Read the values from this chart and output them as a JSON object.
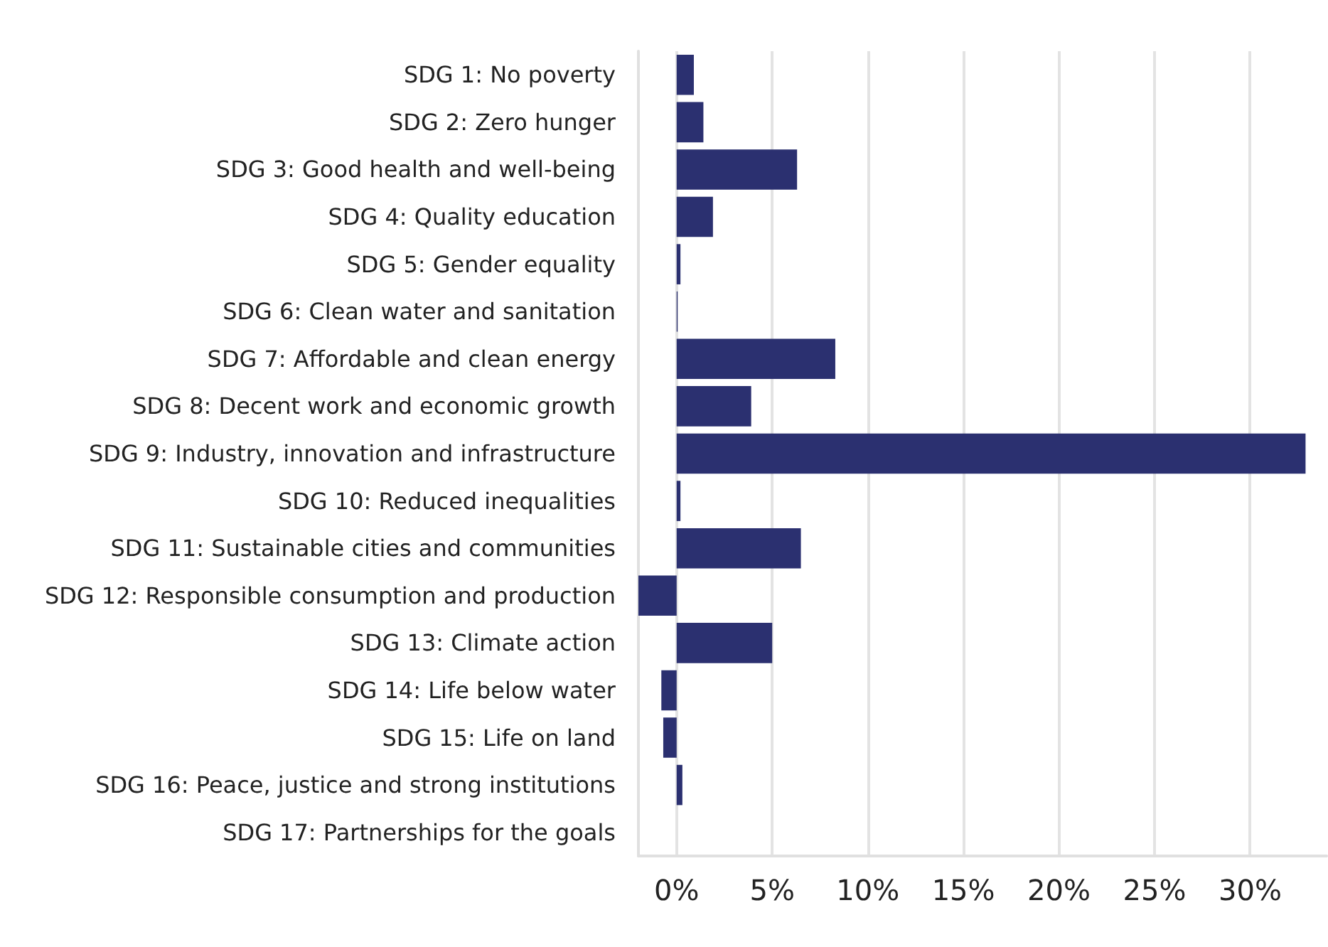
{
  "chart_data": {
    "type": "bar",
    "orientation": "horizontal",
    "categories": [
      "SDG 1: No poverty",
      "SDG 2: Zero hunger",
      "SDG 3: Good health and well-being",
      "SDG 4: Quality education",
      "SDG 5: Gender equality",
      "SDG 6: Clean water and sanitation",
      "SDG 7: Affordable and clean energy",
      "SDG 8: Decent work and economic growth",
      "SDG 9: Industry, innovation and infrastructure",
      "SDG 10: Reduced inequalities",
      "SDG 11: Sustainable cities and communities",
      "SDG 12: Responsible consumption and production",
      "SDG 13: Climate action",
      "SDG 14: Life below water",
      "SDG 15: Life on land",
      "SDG 16: Peace, justice and strong institutions",
      "SDG 17: Partnerships for the goals"
    ],
    "values": [
      0.9,
      1.4,
      6.3,
      1.9,
      0.2,
      0.05,
      8.3,
      3.9,
      32.9,
      0.2,
      6.5,
      -2.0,
      5.0,
      -0.8,
      -0.7,
      0.3,
      0
    ],
    "color": "#2b3070",
    "xlim": [
      -2,
      34
    ],
    "xticks": [
      {
        "value": 0,
        "label": "0%"
      },
      {
        "value": 5,
        "label": "5%"
      },
      {
        "value": 10,
        "label": "10%"
      },
      {
        "value": 15,
        "label": "15%"
      },
      {
        "value": 20,
        "label": "20%"
      },
      {
        "value": 25,
        "label": "25%"
      },
      {
        "value": 30,
        "label": "30%"
      }
    ],
    "grid": "x"
  }
}
